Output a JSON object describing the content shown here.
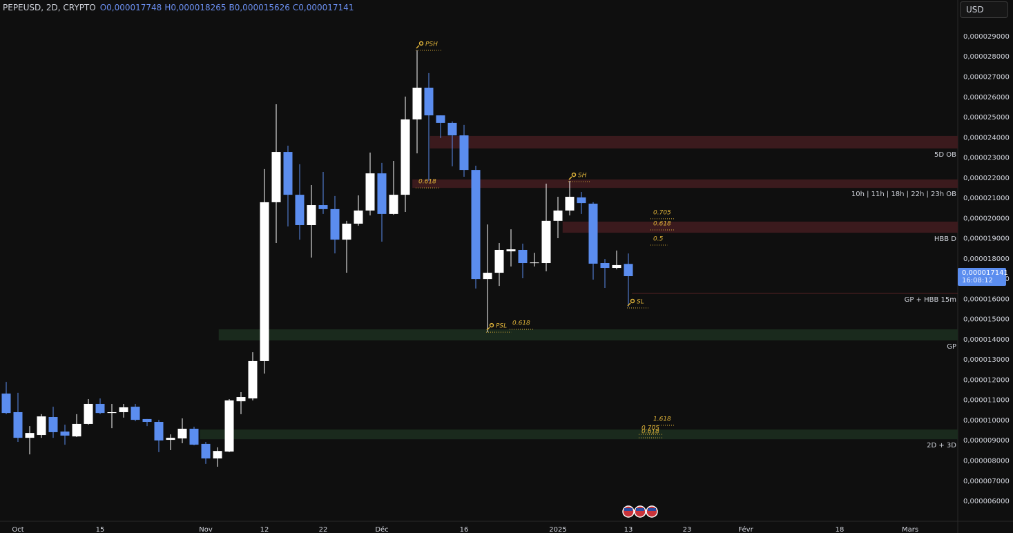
{
  "chart_data": {
    "type": "candlestick",
    "legend": {
      "symbol": "PEPEUSD, 2D, CRYPTO",
      "open": "O0,000017748",
      "high": "H0,000018265",
      "low": "B0,000015626",
      "close": "C0,000017141"
    },
    "currency": "USD",
    "up_color": "#ffffff",
    "down_color": "#5b8def",
    "open": [
      1.133e-05,
      1.041e-05,
      9.14e-06,
      9.28e-06,
      1.017e-05,
      9.45e-06,
      9.21e-06,
      9.83e-06,
      1.082e-05,
      1.037e-05,
      1.041e-05,
      1.068e-05,
      1.007e-05,
      9.93e-06,
      9.04e-06,
      9.11e-06,
      9.59e-06,
      8.84e-06,
      8.12e-06,
      8.46e-06,
      1.095e-05,
      1.109e-05,
      1.294e-05,
      2.08e-05,
      2.329e-05,
      2.117e-05,
      1.967e-05,
      2.066e-05,
      2.046e-05,
      1.895e-05,
      1.974e-05,
      2.039e-05,
      2.223e-05,
      2.022e-05,
      2.117e-05,
      2.49e-05,
      2.647e-05,
      2.51e-05,
      2.473e-05,
      2.411e-05,
      2.24e-05,
      1.7e-05,
      1.731e-05,
      1.837e-05,
      1.844e-05,
      1.779e-05,
      1.779e-05,
      1.988e-05,
      2.039e-05,
      2.104e-05,
      2.073e-05,
      1.779e-05,
      1.755e-05,
      1.7748e-05
    ],
    "high": [
      1.191e-05,
      1.137e-05,
      9.72e-06,
      1.031e-05,
      1.068e-05,
      9.79e-06,
      1.031e-05,
      1.106e-05,
      1.109e-05,
      1.082e-05,
      1.082e-05,
      1.082e-05,
      1.007e-05,
      1.003e-05,
      9.31e-06,
      1.01e-05,
      9.69e-06,
      8.94e-06,
      8.67e-06,
      1.106e-05,
      1.14e-05,
      1.338e-05,
      2.244e-05,
      2.565e-05,
      2.36e-05,
      2.268e-05,
      2.165e-05,
      2.23e-05,
      2.111e-05,
      1.988e-05,
      2.114e-05,
      2.326e-05,
      2.275e-05,
      2.285e-05,
      2.603e-05,
      2.832e-05,
      2.719e-05,
      2.51e-05,
      2.48e-05,
      2.463e-05,
      2.261e-05,
      1.97e-05,
      1.878e-05,
      1.946e-05,
      1.875e-05,
      1.83e-05,
      2.172e-05,
      2.107e-05,
      2.186e-05,
      2.131e-05,
      2.08e-05,
      1.799e-05,
      1.841e-05,
      1.8265e-05
    ],
    "low": [
      1.031e-05,
      8.94e-06,
      8.32e-06,
      9.14e-06,
      9.14e-06,
      8.8e-06,
      9.18e-06,
      9.79e-06,
      1.031e-05,
      9.62e-06,
      1.014e-05,
      9.96e-06,
      9.72e-06,
      8.43e-06,
      8.53e-06,
      8.87e-06,
      8.77e-06,
      7.85e-06,
      7.71e-06,
      8.43e-06,
      1.031e-05,
      1.099e-05,
      1.232e-05,
      1.878e-05,
      1.96e-05,
      1.895e-05,
      1.806e-05,
      2.022e-05,
      1.827e-05,
      1.731e-05,
      1.964e-05,
      2.015e-05,
      1.885e-05,
      2.018e-05,
      2.032e-05,
      2.322e-05,
      2.186e-05,
      2.398e-05,
      2.258e-05,
      2.206e-05,
      1.653e-05,
      1.437e-05,
      1.666e-05,
      1.762e-05,
      1.704e-05,
      1.762e-05,
      1.738e-05,
      1.902e-05,
      2.015e-05,
      2.022e-05,
      1.697e-05,
      1.656e-05,
      1.748e-05,
      1.5626e-05
    ],
    "close": [
      1.037e-05,
      9.14e-06,
      9.38e-06,
      1.02e-05,
      9.42e-06,
      9.25e-06,
      9.83e-06,
      1.082e-05,
      1.037e-05,
      1.041e-05,
      1.065e-05,
      1.003e-05,
      9.93e-06,
      9.01e-06,
      9.14e-06,
      9.59e-06,
      8.8e-06,
      8.12e-06,
      8.49e-06,
      1.099e-05,
      1.116e-05,
      1.294e-05,
      2.08e-05,
      2.329e-05,
      2.117e-05,
      1.967e-05,
      2.066e-05,
      2.046e-05,
      1.895e-05,
      1.974e-05,
      2.039e-05,
      2.223e-05,
      2.022e-05,
      2.117e-05,
      2.49e-05,
      2.647e-05,
      2.51e-05,
      2.473e-05,
      2.411e-05,
      2.24e-05,
      1.7e-05,
      1.731e-05,
      1.844e-05,
      1.847e-05,
      1.779e-05,
      1.782e-05,
      1.988e-05,
      2.039e-05,
      2.107e-05,
      2.076e-05,
      1.776e-05,
      1.755e-05,
      1.769e-05,
      1.7141e-05
    ],
    "price_label": {
      "label": "0,000017141",
      "time": "16:08:12",
      "color": "#5b8def"
    },
    "ylim": [
      5.01e-06,
      3.081e-05
    ],
    "yticks": [
      {
        "value": 6e-06,
        "label": "0,000006000"
      },
      {
        "value": 7e-06,
        "label": "0,000007000"
      },
      {
        "value": 8e-06,
        "label": "0,000008000"
      },
      {
        "value": 9e-06,
        "label": "0,000009000"
      },
      {
        "value": 1e-05,
        "label": "0,000010000"
      },
      {
        "value": 1.1e-05,
        "label": "0,000011000"
      },
      {
        "value": 1.2e-05,
        "label": "0,000012000"
      },
      {
        "value": 1.3e-05,
        "label": "0,000013000"
      },
      {
        "value": 1.4e-05,
        "label": "0,000014000"
      },
      {
        "value": 1.5e-05,
        "label": "0,000015000"
      },
      {
        "value": 1.6e-05,
        "label": "0,000016000"
      },
      {
        "value": 1.7e-05,
        "label": "0,000017000"
      },
      {
        "value": 1.8e-05,
        "label": "0,000018000"
      },
      {
        "value": 1.9e-05,
        "label": "0,000019000"
      },
      {
        "value": 2e-05,
        "label": "0,000020000"
      },
      {
        "value": 2.1e-05,
        "label": "0,000021000"
      },
      {
        "value": 2.2e-05,
        "label": "0,000022000"
      },
      {
        "value": 2.3e-05,
        "label": "0,000023000"
      },
      {
        "value": 2.4e-05,
        "label": "0,000024000"
      },
      {
        "value": 2.5e-05,
        "label": "0,000025000"
      },
      {
        "value": 2.6e-05,
        "label": "0,000026000"
      },
      {
        "value": 2.7e-05,
        "label": "0,000027000"
      },
      {
        "value": 2.8e-05,
        "label": "0,000028000"
      },
      {
        "value": 2.9e-05,
        "label": "0,000029000"
      }
    ],
    "xticks": [
      {
        "value": 1,
        "label": "Oct"
      },
      {
        "value": 8,
        "label": "15"
      },
      {
        "value": 17,
        "label": "Nov"
      },
      {
        "value": 22,
        "label": "12"
      },
      {
        "value": 27,
        "label": "22"
      },
      {
        "value": 32,
        "label": "Déc"
      },
      {
        "value": 39,
        "label": "16"
      },
      {
        "value": 47,
        "label": "2025"
      },
      {
        "value": 53,
        "label": "13"
      },
      {
        "value": 58,
        "label": "23"
      },
      {
        "value": 63,
        "label": "Févr"
      },
      {
        "value": 71,
        "label": "18"
      },
      {
        "value": 77,
        "label": "Mars"
      }
    ],
    "grid": false,
    "zones": [
      {
        "label": "5D OB",
        "low": 2.346e-05,
        "high": 2.408e-05,
        "start": 36.1,
        "color": "#3b1a1d"
      },
      {
        "label": "10h | 11h | 18h | 22h | 23h OB",
        "low": 2.151e-05,
        "high": 2.193e-05,
        "start": 34.6,
        "color": "#3b1a1d"
      },
      {
        "label": "HBB D",
        "low": 1.929e-05,
        "high": 1.984e-05,
        "start": 47.4,
        "color": "#3b1a1d"
      },
      {
        "label": "GP",
        "low": 1.396e-05,
        "high": 1.451e-05,
        "start": 18.1,
        "color": "#1a2a1d"
      },
      {
        "label": "2D + 3D",
        "low": 9.07e-06,
        "high": 9.55e-06,
        "start": 16.5,
        "color": "#1a2a1d"
      }
    ],
    "lines": [
      {
        "label": "GP + HBB 15m",
        "value": 1.629e-05,
        "start": 53.3,
        "color": "#5a2326"
      }
    ],
    "annotations": [
      {
        "text": "PSH",
        "x": 35,
        "y": 2.832e-05,
        "icon": "key"
      },
      {
        "text": "SH",
        "x": 48,
        "y": 2.182e-05,
        "icon": "key"
      },
      {
        "text": "SL",
        "x": 53,
        "y": 1.557e-05,
        "icon": "key"
      },
      {
        "text": "PSL",
        "x": 41,
        "y": 1.437e-05,
        "icon": "key"
      },
      {
        "text": "0.618",
        "x": 35,
        "y": 2.151e-05
      },
      {
        "text": "0.618",
        "x": 43,
        "y": 1.451e-05
      },
      {
        "text": "0.705",
        "x": 55,
        "y": 1.998e-05
      },
      {
        "text": "0.618",
        "x": 55,
        "y": 1.943e-05
      },
      {
        "text": "0.5",
        "x": 55,
        "y": 1.868e-05
      },
      {
        "text": "1.618",
        "x": 55,
        "y": 9.76e-06
      },
      {
        "text": "0.705",
        "x": 54,
        "y": 9.31e-06
      },
      {
        "text": "0.618",
        "x": 54,
        "y": 9.14e-06
      }
    ]
  }
}
